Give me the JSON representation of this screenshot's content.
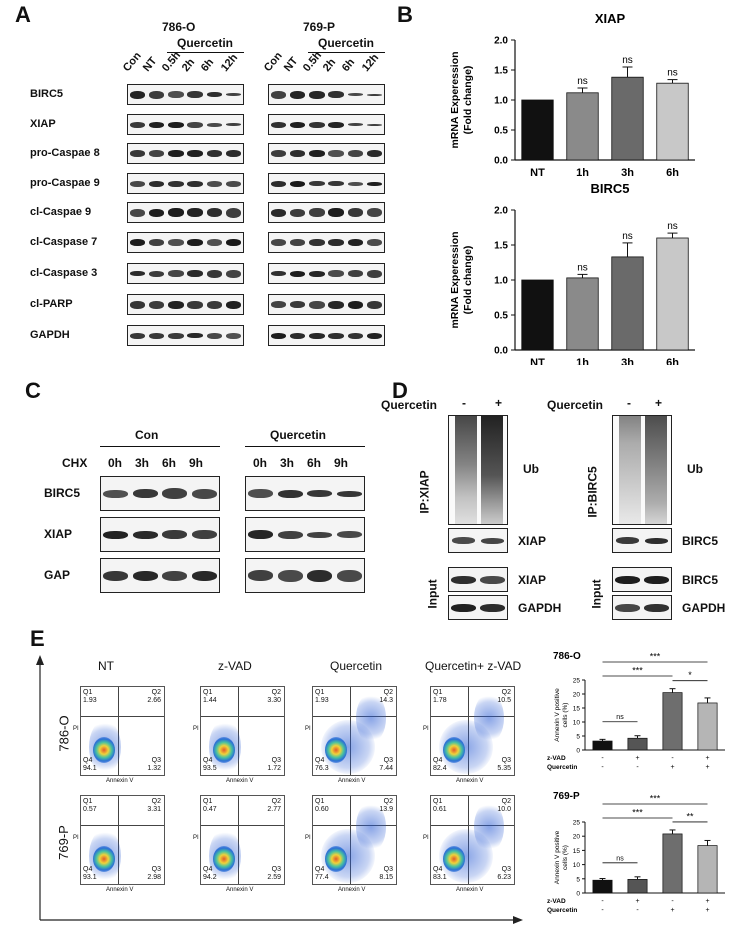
{
  "panels": {
    "a": "A",
    "b": "B",
    "c": "C",
    "d": "D",
    "e": "E"
  },
  "panelA": {
    "cell_lines": [
      "786-O",
      "769-P"
    ],
    "treatment": "Quercetin",
    "lanes": [
      "Con",
      "NT",
      "0.5h",
      "2h",
      "6h",
      "12h"
    ],
    "rows": [
      "BIRC5",
      "XIAP",
      "pro-Caspae 8",
      "pro-Caspae 9",
      "cl-Caspae 9",
      "cl-Caspase 7",
      "cl-Caspase 3",
      "cl-PARP",
      "GAPDH"
    ]
  },
  "panelB": {
    "ylabel1": "mRNA Experession",
    "ylabel2": "(Fold change)",
    "charts": [
      {
        "title": "XIAP",
        "categories": [
          "NT",
          "1h",
          "3h",
          "6h"
        ],
        "values": [
          1.0,
          1.12,
          1.38,
          1.28
        ],
        "errors": [
          0,
          0.08,
          0.17,
          0.06
        ],
        "sig": [
          "",
          "ns",
          "ns",
          "ns"
        ],
        "yticks": [
          "0.0",
          "0.5",
          "1.0",
          "1.5",
          "2.0"
        ],
        "ylim": [
          0,
          2
        ]
      },
      {
        "title": "BIRC5",
        "categories": [
          "NT",
          "1h",
          "3h",
          "6h"
        ],
        "values": [
          1.0,
          1.03,
          1.33,
          1.6
        ],
        "errors": [
          0,
          0.05,
          0.2,
          0.07
        ],
        "sig": [
          "",
          "ns",
          "ns",
          "ns"
        ],
        "yticks": [
          "0.0",
          "0.5",
          "1.0",
          "1.5",
          "2.0"
        ],
        "ylim": [
          0,
          2
        ]
      }
    ]
  },
  "panelC": {
    "groups": [
      "Con",
      "Quercetin"
    ],
    "chx": "CHX",
    "times": [
      "0h",
      "3h",
      "6h",
      "9h"
    ],
    "rows": [
      "BIRC5",
      "XIAP",
      "GAP"
    ]
  },
  "panelD": {
    "treatment": "Quercetin",
    "signs": [
      "-",
      "+"
    ],
    "ip_xiap": "IP:XIAP",
    "ip_birc5": "IP:BIRC5",
    "ub": "Ub",
    "xiap": "XIAP",
    "birc5": "BIRC5",
    "input": "Input",
    "gapdh": "GAPDH"
  },
  "panelE": {
    "conditions": [
      "NT",
      "z-VAD",
      "Quercetin",
      "Quercetin+ z-VAD"
    ],
    "cell_lines": [
      "786-O",
      "769-P"
    ],
    "axis_x": "Annexin V",
    "axis_y": "PI",
    "quad_labels": [
      "Q1",
      "Q2",
      "Q3",
      "Q4"
    ],
    "quadrants": [
      [
        {
          "q1": "1.93",
          "q2": "2.66",
          "q3": "1.32",
          "q4": "94.1"
        },
        {
          "q1": "1.44",
          "q2": "3.30",
          "q3": "1.72",
          "q4": "93.5"
        },
        {
          "q1": "1.93",
          "q2": "14.3",
          "q3": "7.44",
          "q4": "76.3"
        },
        {
          "q1": "1.78",
          "q2": "10.5",
          "q3": "5.35",
          "q4": "82.4"
        }
      ],
      [
        {
          "q1": "0.57",
          "q2": "3.31",
          "q3": "2.98",
          "q4": "93.1"
        },
        {
          "q1": "0.47",
          "q2": "2.77",
          "q3": "2.59",
          "q4": "94.2"
        },
        {
          "q1": "0.60",
          "q2": "13.9",
          "q3": "8.15",
          "q4": "77.4"
        },
        {
          "q1": "0.61",
          "q2": "10.0",
          "q3": "6.23",
          "q4": "83.1"
        }
      ]
    ]
  },
  "chart_data": [
    {
      "type": "bar",
      "title": "XIAP",
      "categories": [
        "NT",
        "1h",
        "3h",
        "6h"
      ],
      "values": [
        1.0,
        1.12,
        1.38,
        1.28
      ],
      "ylabel": "mRNA Experession (Fold change)",
      "ylim": [
        0,
        2
      ]
    },
    {
      "type": "bar",
      "title": "BIRC5",
      "categories": [
        "NT",
        "1h",
        "3h",
        "6h"
      ],
      "values": [
        1.0,
        1.03,
        1.33,
        1.6
      ],
      "ylabel": "mRNA Experession (Fold change)",
      "ylim": [
        0,
        2
      ]
    },
    {
      "type": "bar",
      "title": "786-O",
      "categories": [
        "-/-",
        "+/-",
        "-/+",
        "+/+"
      ],
      "values": [
        3.2,
        4.2,
        20.5,
        16.8
      ],
      "ylabel": "Annexin V positive cells (%)",
      "ylim": [
        0,
        25
      ],
      "yticks": [
        "0",
        "5",
        "10",
        "15",
        "20",
        "25"
      ],
      "row_labels": [
        "z-VAD",
        "Quercetin"
      ],
      "zvad": [
        "-",
        "+",
        "-",
        "+"
      ],
      "quercetin": [
        "-",
        "-",
        "+",
        "+"
      ],
      "sig": [
        {
          "pair": "1-2",
          "label": "ns"
        },
        {
          "pair": "1-3",
          "label": "***"
        },
        {
          "pair": "1-4",
          "label": "***"
        },
        {
          "pair": "3-4",
          "label": "*"
        }
      ]
    },
    {
      "type": "bar",
      "title": "769-P",
      "categories": [
        "-/-",
        "+/-",
        "-/+",
        "+/+"
      ],
      "values": [
        4.5,
        4.8,
        20.8,
        16.7
      ],
      "ylabel": "Annexin V positive cells (%)",
      "ylim": [
        0,
        25
      ],
      "yticks": [
        "0",
        "5",
        "10",
        "15",
        "20",
        "25"
      ],
      "row_labels": [
        "z-VAD",
        "Quercetin"
      ],
      "zvad": [
        "-",
        "+",
        "-",
        "+"
      ],
      "quercetin": [
        "-",
        "-",
        "+",
        "+"
      ],
      "sig": [
        {
          "pair": "1-2",
          "label": "ns"
        },
        {
          "pair": "1-3",
          "label": "***"
        },
        {
          "pair": "1-4",
          "label": "***"
        },
        {
          "pair": "3-4",
          "label": "**"
        }
      ]
    }
  ]
}
